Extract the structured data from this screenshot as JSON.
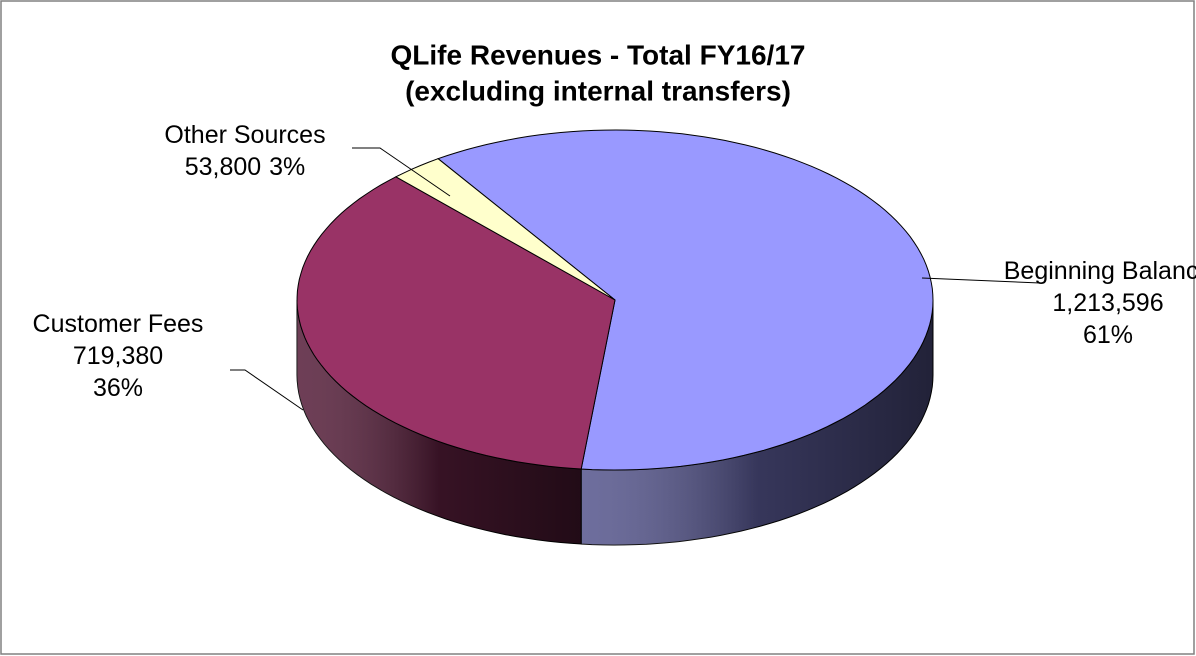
{
  "chart_data": {
    "type": "pie3d",
    "title": "QLife Revenues - Total FY16/17",
    "subtitle": "(excluding internal transfers)",
    "categories": [
      "Beginning Balance",
      "Customer Fees",
      "Other Sources"
    ],
    "values": [
      1213596,
      719380,
      53800
    ],
    "value_labels": [
      "1,213,596",
      "719,380",
      "53,800"
    ],
    "percent_labels": [
      "61%",
      "36%",
      "3%"
    ],
    "colors": [
      "#9999ff",
      "#993366",
      "#ffffcc"
    ]
  }
}
